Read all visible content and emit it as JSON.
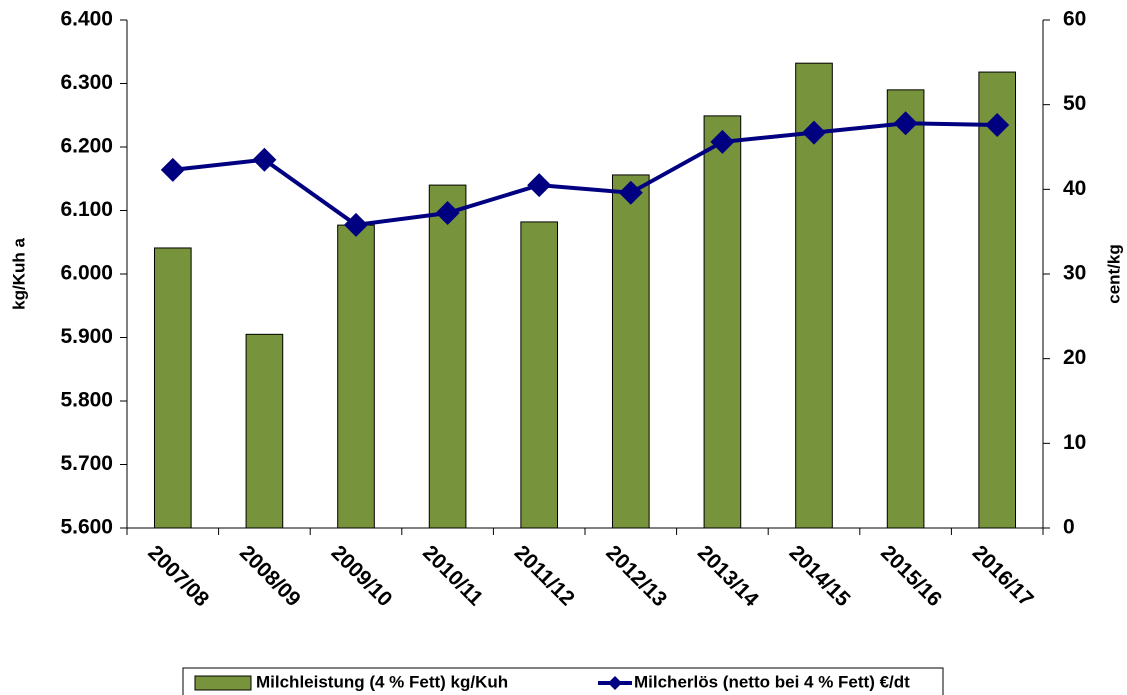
{
  "chart_data": {
    "type": "bar",
    "categories": [
      "2007/08",
      "2008/09",
      "2009/10",
      "2010/11",
      "2011/12",
      "2012/13",
      "2013/14",
      "2014/15",
      "2015/16",
      "2016/17"
    ],
    "series": [
      {
        "name": "Milchleistung (4 % Fett) kg/Kuh",
        "type": "bar",
        "color": "#77933c",
        "values": [
          6041,
          5905,
          6077,
          6140,
          6082,
          6156,
          6249,
          6332,
          6290,
          6318
        ]
      },
      {
        "name": "Milcherlös (netto bei 4 % Fett) €/dt",
        "type": "line",
        "axis": "y2",
        "color": "#000080",
        "values": [
          42.3,
          43.5,
          35.8,
          37.2,
          40.5,
          39.6,
          45.6,
          46.7,
          47.8,
          47.6
        ]
      }
    ],
    "ylabel": "kg/Kuh a",
    "y2label": "cent/kg",
    "ylim": [
      5600,
      6400
    ],
    "yticks": [
      {
        "value": 5600,
        "label": "5.600"
      },
      {
        "value": 5700,
        "label": "5.700"
      },
      {
        "value": 5800,
        "label": "5.800"
      },
      {
        "value": 5900,
        "label": "5.900"
      },
      {
        "value": 6000,
        "label": "6.000"
      },
      {
        "value": 6100,
        "label": "6.100"
      },
      {
        "value": 6200,
        "label": "6.200"
      },
      {
        "value": 6300,
        "label": "6.300"
      },
      {
        "value": 6400,
        "label": "6.400"
      }
    ],
    "y2lim": [
      0,
      60
    ],
    "y2ticks": [
      0,
      10,
      20,
      30,
      40,
      50,
      60
    ],
    "legend": "bottom"
  }
}
